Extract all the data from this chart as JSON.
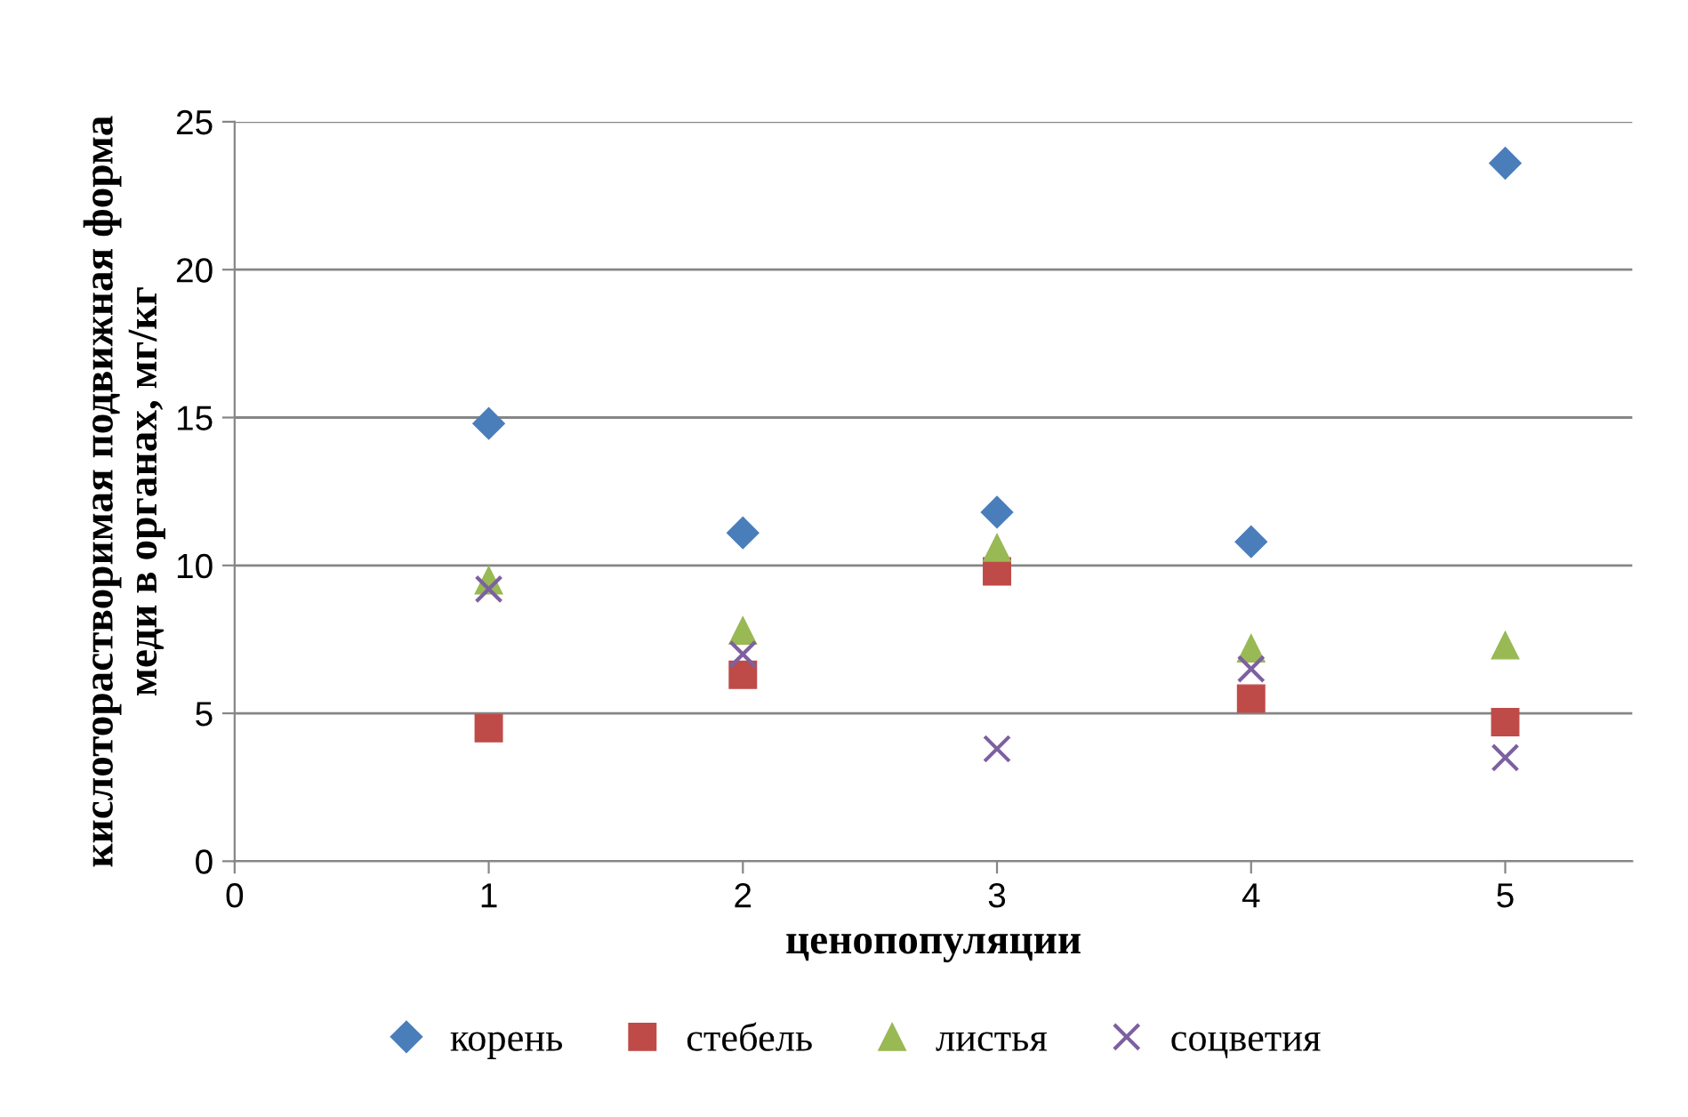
{
  "chart_data": {
    "type": "scatter",
    "xlabel": "ценопопуляции",
    "ylabel": "кислоторастворимая подвижная форма\nмеди в органах, мг/кг",
    "x": [
      1,
      2,
      3,
      4,
      5
    ],
    "series": [
      {
        "name": "корень",
        "color": "#4a7ebb",
        "marker": "diamond",
        "values": [
          14.8,
          11.1,
          11.8,
          10.8,
          23.6
        ]
      },
      {
        "name": "стебель",
        "color": "#be4b48",
        "marker": "square",
        "values": [
          4.5,
          6.3,
          9.8,
          5.5,
          4.7
        ]
      },
      {
        "name": "листья",
        "color": "#98b954",
        "marker": "triangle",
        "values": [
          9.5,
          7.8,
          10.6,
          7.2,
          7.3
        ]
      },
      {
        "name": "соцветия",
        "color": "#7d60a0",
        "marker": "cross",
        "values": [
          9.2,
          7.0,
          3.8,
          6.5,
          3.5
        ]
      }
    ],
    "xlim": [
      0,
      5.5
    ],
    "xticks": [
      0,
      1,
      2,
      3,
      4,
      5
    ],
    "ylim": [
      0,
      25
    ],
    "yticks": [
      0,
      5,
      10,
      15,
      20,
      25
    ],
    "grid": "y",
    "legend": "bottom"
  }
}
